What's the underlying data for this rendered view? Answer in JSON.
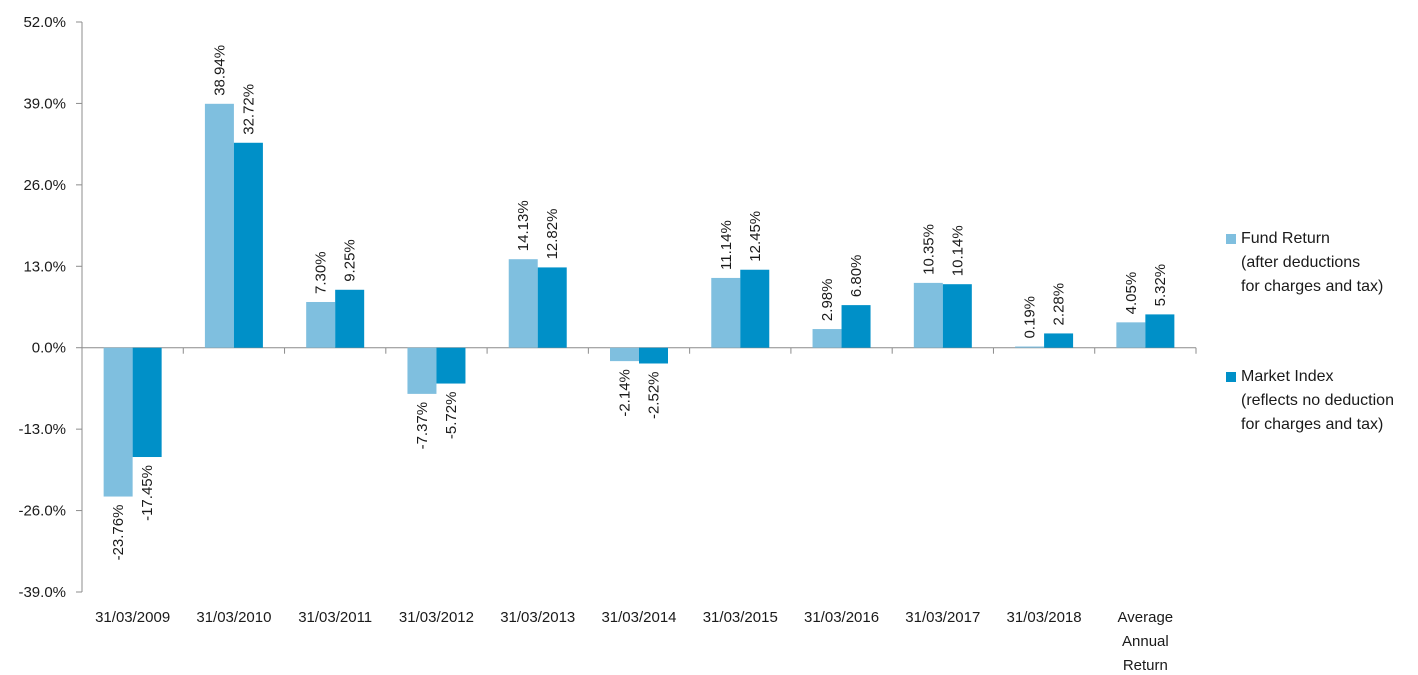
{
  "chart_data": {
    "type": "bar",
    "title": "",
    "xlabel": "",
    "ylabel": "",
    "ylim": [
      -39.0,
      52.0
    ],
    "yticks": [
      "52.0%",
      "39.0%",
      "26.0%",
      "13.0%",
      "0.0%",
      "-13.0%",
      "-26.0%",
      "-39.0%"
    ],
    "ytick_values": [
      52,
      39,
      26,
      13,
      0,
      -13,
      -26,
      -39
    ],
    "categories": [
      [
        "31/03/2009"
      ],
      [
        "31/03/2010"
      ],
      [
        "31/03/2011"
      ],
      [
        "31/03/2012"
      ],
      [
        "31/03/2013"
      ],
      [
        "31/03/2014"
      ],
      [
        "31/03/2015"
      ],
      [
        "31/03/2016"
      ],
      [
        "31/03/2017"
      ],
      [
        "31/03/2018"
      ],
      [
        "Average",
        "Annual",
        "Return"
      ]
    ],
    "grid": false,
    "legend_position": "right",
    "series": [
      {
        "name": [
          "Fund Return",
          "(after deductions",
          "for charges and tax)"
        ],
        "color": "#7fbfdf",
        "values": [
          -23.76,
          38.94,
          7.3,
          -7.37,
          14.13,
          -2.14,
          11.14,
          2.98,
          10.35,
          0.19,
          4.05
        ],
        "labels": [
          "-23.76%",
          "38.94%",
          "7.30%",
          "-7.37%",
          "14.13%",
          "-2.14%",
          "11.14%",
          "2.98%",
          "10.35%",
          "0.19%",
          "4.05%"
        ]
      },
      {
        "name": [
          "Market Index",
          "(reflects no deduction",
          "for charges and tax)"
        ],
        "color": "#0090c8",
        "values": [
          -17.45,
          32.72,
          9.25,
          -5.72,
          12.82,
          -2.52,
          12.45,
          6.8,
          10.14,
          2.28,
          5.32
        ],
        "labels": [
          "-17.45%",
          "32.72%",
          "9.25%",
          "-5.72%",
          "12.82%",
          "-2.52%",
          "12.45%",
          "6.80%",
          "10.14%",
          "2.28%",
          "5.32%"
        ]
      }
    ]
  }
}
